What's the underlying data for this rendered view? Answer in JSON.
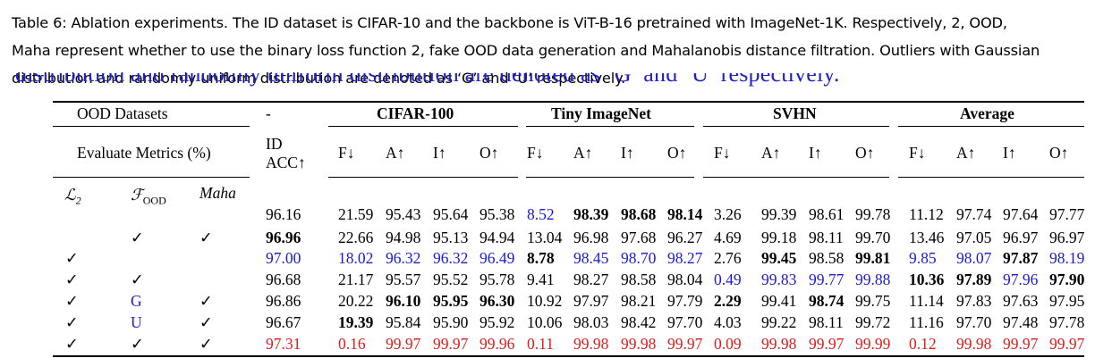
{
  "caption": {
    "lines": [
      "Table 6: Ablation experiments. The ID dataset is CIFAR-10 and the backbone is ViT-B-16 pretrained with ImageNet-1K. Respectively, 2, OOD,",
      "Maha represent whether to use the binary loss function 2, fake OOD data generation and Mahalanobis distance filtration. Outliers with Gaussian",
      "distribution and randomly uniform distribution are denoted as ‘G’ and ‘U’ respectively."
    ],
    "ghost": "distribution and randomly uniform distribution are denoted as ‘G’ and ‘U’ respectively."
  },
  "header": {
    "ood_datasets": "OOD Datasets",
    "dash": "-",
    "groups": [
      "CIFAR-100",
      "Tiny ImageNet",
      "SVHN",
      "Average"
    ],
    "evaluate_metrics": "Evaluate Metrics (%)",
    "id_acc_1": "ID",
    "id_acc_2": "ACC↑",
    "metrics": [
      "F↓",
      "A↑",
      "I↑",
      "O↑"
    ],
    "flag_l2": "ℒ",
    "flag_l2_sub": "2",
    "flag_food": "ℱ",
    "flag_food_sub": "OOD",
    "flag_maha": "Maha"
  },
  "rows": [
    {
      "l2": "",
      "food": "",
      "maha": "",
      "acc": "96.16",
      "vals": [
        "21.59",
        "95.43",
        "95.64",
        "95.38",
        "8.52",
        "98.39",
        "98.68",
        "98.14",
        "3.26",
        "99.39",
        "98.61",
        "99.78",
        "11.12",
        "97.74",
        "97.64",
        "97.77"
      ]
    },
    {
      "l2": "",
      "food": "✓",
      "maha": "✓",
      "acc": "96.96",
      "vals": [
        "22.66",
        "94.98",
        "95.13",
        "94.94",
        "13.04",
        "96.98",
        "97.68",
        "96.27",
        "4.69",
        "99.18",
        "98.11",
        "99.70",
        "13.46",
        "97.05",
        "96.97",
        "96.97"
      ]
    },
    {
      "l2": "✓",
      "food": "",
      "maha": "",
      "acc": "97.00",
      "vals": [
        "18.02",
        "96.32",
        "96.32",
        "96.49",
        "8.78",
        "98.45",
        "98.70",
        "98.27",
        "2.76",
        "99.45",
        "98.58",
        "99.81",
        "9.85",
        "98.07",
        "97.87",
        "98.19"
      ]
    },
    {
      "l2": "✓",
      "food": "✓",
      "maha": "",
      "acc": "96.68",
      "vals": [
        "21.17",
        "95.57",
        "95.52",
        "95.78",
        "9.41",
        "98.27",
        "98.58",
        "98.04",
        "0.49",
        "99.83",
        "99.77",
        "99.88",
        "10.36",
        "97.89",
        "97.96",
        "97.90"
      ]
    },
    {
      "l2": "✓",
      "food": "G",
      "maha": "✓",
      "acc": "96.86",
      "vals": [
        "20.22",
        "96.10",
        "95.95",
        "96.30",
        "10.92",
        "97.97",
        "98.21",
        "97.79",
        "2.29",
        "99.41",
        "98.74",
        "99.75",
        "11.14",
        "97.83",
        "97.63",
        "97.95"
      ]
    },
    {
      "l2": "✓",
      "food": "U",
      "maha": "✓",
      "acc": "96.67",
      "vals": [
        "19.39",
        "95.84",
        "95.90",
        "95.92",
        "10.06",
        "98.03",
        "98.42",
        "97.70",
        "4.03",
        "99.22",
        "98.11",
        "99.72",
        "11.16",
        "97.70",
        "97.48",
        "97.78"
      ]
    },
    {
      "l2": "✓",
      "food": "✓",
      "maha": "✓",
      "acc": "97.31",
      "vals": [
        "0.16",
        "99.97",
        "99.97",
        "99.96",
        "0.11",
        "99.98",
        "99.98",
        "99.97",
        "0.09",
        "99.98",
        "99.97",
        "99.99",
        "0.12",
        "99.98",
        "99.97",
        "99.97"
      ]
    }
  ],
  "colors": {
    "blue": "#1a1ad6",
    "red": "#e01b1b"
  }
}
